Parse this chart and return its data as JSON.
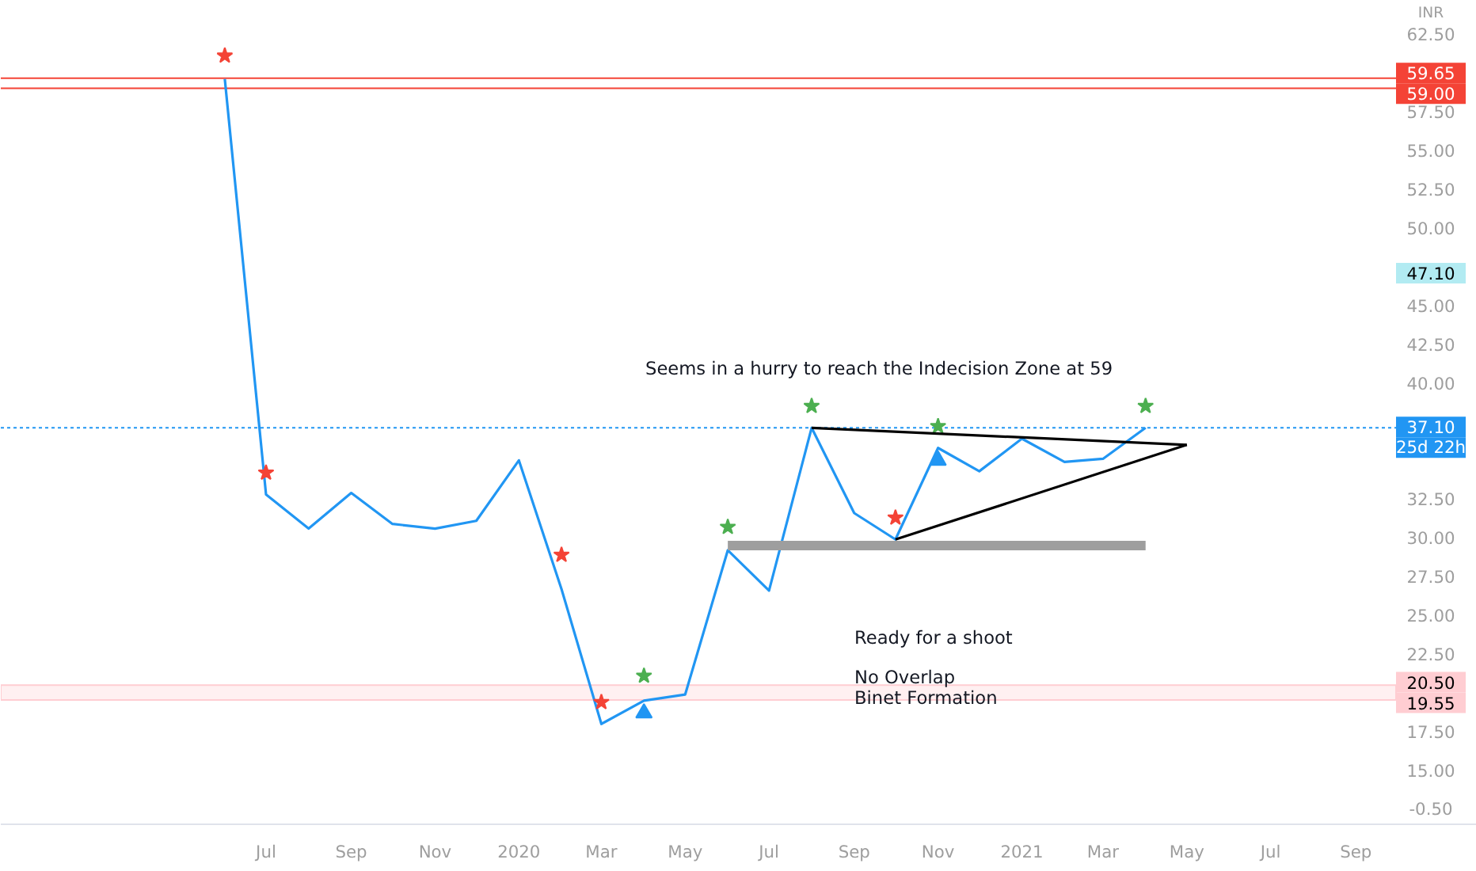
{
  "chart_data": {
    "type": "line",
    "x": [
      "2019-06",
      "2019-07",
      "2019-08",
      "2019-09",
      "2019-10",
      "2019-11",
      "2019-12",
      "2020-01",
      "2020-02",
      "2020-03",
      "2020-04",
      "2020-05",
      "2020-06",
      "2020-07",
      "2020-08",
      "2020-09",
      "2020-10",
      "2020-11",
      "2020-12",
      "2021-01",
      "2021-02",
      "2021-03",
      "2021-04"
    ],
    "series": [
      {
        "color": "#2196f3",
        "values": [
          59.6,
          32.8,
          30.6,
          32.9,
          30.9,
          30.6,
          31.1,
          35.0,
          26.7,
          18.0,
          19.5,
          19.9,
          29.2,
          26.6,
          37.1,
          31.6,
          29.9,
          35.8,
          34.3,
          36.4,
          34.9,
          35.1,
          37.1
        ]
      },
      {
        "type": "scatter",
        "marker": "star",
        "color": "#f44336",
        "x": [
          "2019-06",
          "2019-07",
          "2020-02",
          "2020-03",
          "2020-10"
        ],
        "values": [
          61.1,
          34.2,
          28.9,
          19.4,
          31.3
        ]
      },
      {
        "type": "scatter",
        "marker": "star",
        "color": "#4caf50",
        "x": [
          "2020-04",
          "2020-06",
          "2020-08",
          "2020-11",
          "2021-04"
        ],
        "values": [
          21.1,
          30.7,
          38.5,
          37.2,
          38.5
        ]
      },
      {
        "type": "scatter",
        "marker": "triangle",
        "color": "#2196f3",
        "x": [
          "2020-04",
          "2020-11"
        ],
        "values": [
          18.7,
          35.0
        ]
      },
      {
        "type": "line",
        "color": "#000000",
        "x": [
          "2020-08",
          "2021-05"
        ],
        "values": [
          37.1,
          36.0
        ]
      },
      {
        "type": "line",
        "color": "#000000",
        "x": [
          "2020-10",
          "2021-05"
        ],
        "values": [
          29.9,
          36.0
        ]
      },
      {
        "type": "line",
        "color": "#9e9e9e",
        "x": [
          "2020-06",
          "2021-04"
        ],
        "values": [
          29.5,
          29.5
        ]
      }
    ],
    "xlim": [
      "2018-12-20",
      "2021-11-28"
    ],
    "xticks": [
      {
        "value": "2019-07",
        "label": "Jul"
      },
      {
        "value": "2019-09",
        "label": "Sep"
      },
      {
        "value": "2019-11",
        "label": "Nov"
      },
      {
        "value": "2020-01",
        "label": "2020"
      },
      {
        "value": "2020-03",
        "label": "Mar"
      },
      {
        "value": "2020-05",
        "label": "May"
      },
      {
        "value": "2020-07",
        "label": "Jul"
      },
      {
        "value": "2020-09",
        "label": "Sep"
      },
      {
        "value": "2020-11",
        "label": "Nov"
      },
      {
        "value": "2021-01",
        "label": "2021"
      },
      {
        "value": "2021-03",
        "label": "Mar"
      },
      {
        "value": "2021-05",
        "label": "May"
      },
      {
        "value": "2021-07",
        "label": "Jul"
      },
      {
        "value": "2021-09",
        "label": "Sep"
      }
    ],
    "ylim": [
      15,
      62.5
    ],
    "yticks": [
      {
        "value": 15,
        "label": "15.00"
      },
      {
        "value": 17.5,
        "label": "17.50"
      },
      {
        "value": 22.5,
        "label": "22.50"
      },
      {
        "value": 25,
        "label": "25.00"
      },
      {
        "value": 27.5,
        "label": "27.50"
      },
      {
        "value": 30,
        "label": "30.00"
      },
      {
        "value": 32.5,
        "label": "32.50"
      },
      {
        "value": 40,
        "label": "40.00"
      },
      {
        "value": 42.5,
        "label": "42.50"
      },
      {
        "value": 45,
        "label": "45.00"
      },
      {
        "value": 50,
        "label": "50.00"
      },
      {
        "value": 52.5,
        "label": "52.50"
      },
      {
        "value": 55,
        "label": "55.00"
      },
      {
        "value": 57.5,
        "label": "57.50"
      },
      {
        "value": 62.5,
        "label": "62.50"
      }
    ],
    "ref_lines": [
      {
        "axis": "y",
        "value": 59.65,
        "label": "59.65",
        "color": "#f44336",
        "line_style": "solid"
      },
      {
        "axis": "y",
        "value": 59.0,
        "label": "59.00",
        "color": "#f44336",
        "line_style": "solid"
      },
      {
        "axis": "y",
        "value": 37.1,
        "label": "37.10",
        "color": "#2196f3",
        "line_style": "dotted"
      }
    ],
    "bands": [
      {
        "axis": "y",
        "from": 19.55,
        "to": 20.5,
        "label": "20.50",
        "color": "#ffcdd2"
      }
    ],
    "annotations": [
      "Seems in a hurry to reach the Indecision Zone at 59",
      "Ready for a shoot",
      "No Overlap",
      "Binet Formation",
      "INR",
      "25d 22h",
      "19.55",
      "47.10",
      "-0.50"
    ],
    "grid": false
  }
}
